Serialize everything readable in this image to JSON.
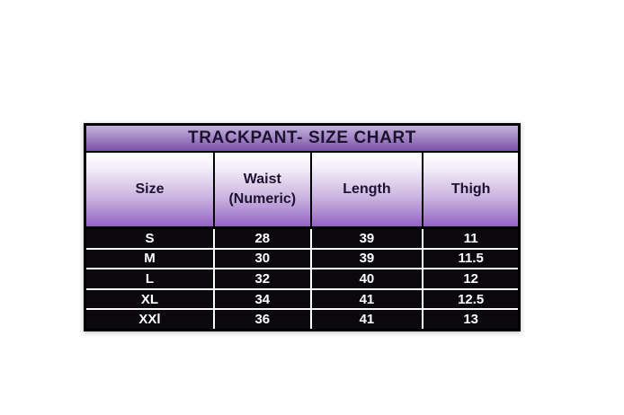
{
  "chart_data": {
    "type": "table",
    "title": "TRACKPANT- SIZE CHART",
    "columns": [
      "Size",
      "Waist (Numeric)",
      "Length",
      "Thigh"
    ],
    "rows": [
      [
        "S",
        "28",
        "39",
        "11"
      ],
      [
        "M",
        "30",
        "39",
        "11.5"
      ],
      [
        "L",
        "32",
        "40",
        "12"
      ],
      [
        "XL",
        "34",
        "41",
        "12.5"
      ],
      [
        "XXl",
        "36",
        "41",
        "13"
      ]
    ]
  },
  "header_display": {
    "waist_line1": "Waist",
    "waist_line2": "(Numeric)"
  },
  "colors": {
    "page_bg": "#ffffff",
    "border": "#000000",
    "title_gradient_top": "#c3b3da",
    "title_gradient_bottom": "#7a50a6",
    "header_gradient_top": "#ffffff",
    "header_gradient_bottom": "#9463c2",
    "header_text": "#1d1230",
    "data_row_bg": "#0b080d",
    "data_text": "#ffffff"
  }
}
